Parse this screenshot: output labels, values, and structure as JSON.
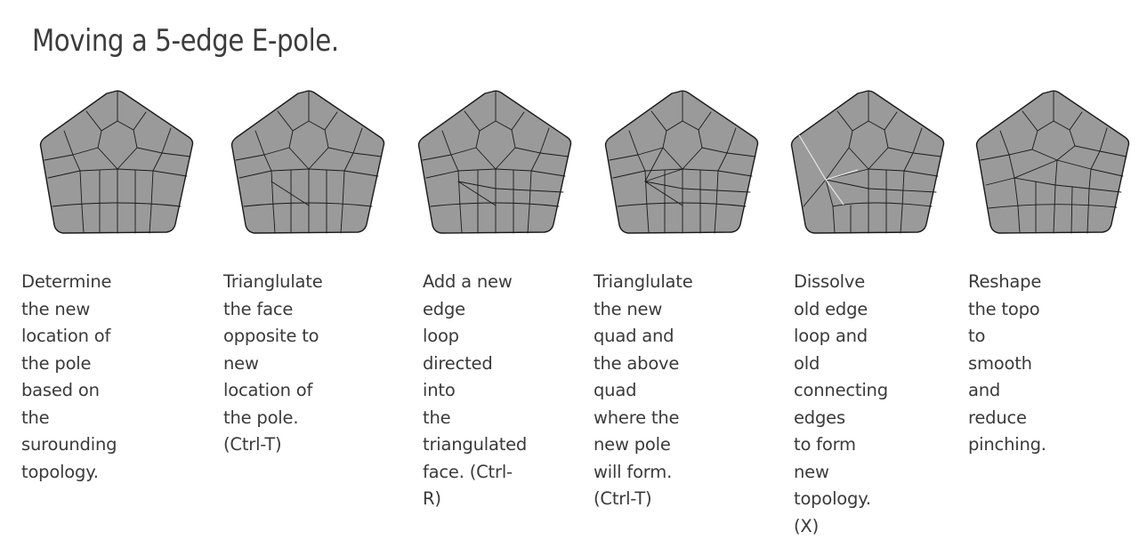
{
  "title": "Moving a 5-edge E-pole.",
  "steps": [
    {
      "caption": "Determine the new\nlocation of the pole\nbased on the\nsurounding topology."
    },
    {
      "caption": "Trianglulate the face\nopposite to new\nlocation of the pole.\n(Ctrl-T)"
    },
    {
      "caption": "Add a new edge\nloop directed into\nthe triangulated\nface. (Ctrl-R)"
    },
    {
      "caption": "Trianglulate the new\nquad and the above\nquad where the\nnew pole will form.\n(Ctrl-T)"
    },
    {
      "caption": "Dissolve old edge\nloop and old\nconnecting edges\nto form new\ntopology. (X)"
    },
    {
      "caption": "Reshape the topo\nto smooth and\nreduce pinching."
    }
  ]
}
